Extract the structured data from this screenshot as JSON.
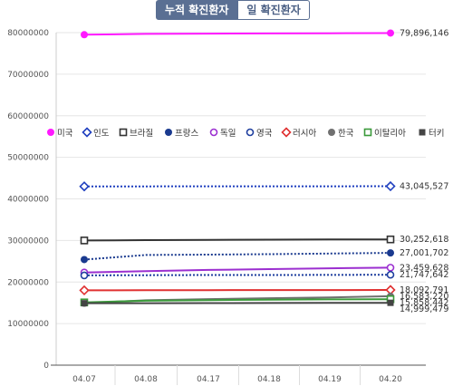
{
  "tabs": {
    "cumulative": "누적 확진환자",
    "daily": "일 확진환자"
  },
  "chart_data": {
    "type": "line",
    "x": [
      "04.07",
      "04.08",
      "04.17",
      "04.18",
      "04.19",
      "04.20"
    ],
    "ylim": [
      0,
      80000000
    ],
    "yticks": [
      "0",
      "10000000",
      "20000000",
      "30000000",
      "40000000",
      "50000000",
      "60000000",
      "70000000",
      "80000000"
    ],
    "grid": true,
    "legend_position": "middle-left",
    "series": [
      {
        "name": "미국",
        "color": "#ff19ff",
        "marker": "circle-filled",
        "values": [
          79500000,
          79700000,
          79750000,
          79800000,
          79850000,
          79896146
        ],
        "end_label": "79,896,146"
      },
      {
        "name": "인도",
        "color": "#1f3fbf",
        "marker": "diamond-open",
        "values": [
          43000000,
          43010000,
          43020000,
          43030000,
          43038000,
          43045527
        ],
        "end_label": "43,045,527"
      },
      {
        "name": "브라질",
        "color": "#333333",
        "marker": "square-open",
        "values": [
          30000000,
          30080000,
          30150000,
          30200000,
          30230000,
          30252618
        ],
        "end_label": "30,252,618"
      },
      {
        "name": "프랑스",
        "color": "#1a3a8f",
        "marker": "circle-filled",
        "values": [
          25400000,
          26500000,
          26600000,
          26700000,
          26850000,
          27001702
        ],
        "end_label": "27,001,702"
      },
      {
        "name": "독일",
        "color": "#9b2fd0",
        "marker": "circle-open",
        "values": [
          22300000,
          22600000,
          22900000,
          23100000,
          23300000,
          23459628
        ],
        "end_label": "23,459,628"
      },
      {
        "name": "영국",
        "color": "#1f3f9f",
        "marker": "circle-open",
        "values": [
          21600000,
          21650000,
          21680000,
          21700000,
          21720000,
          21747642
        ],
        "end_label": "21,747,642"
      },
      {
        "name": "러시아",
        "color": "#e03030",
        "marker": "diamond-open",
        "values": [
          18000000,
          18030000,
          18050000,
          18070000,
          18080000,
          18092791
        ],
        "end_label": "18,092,791"
      },
      {
        "name": "한국",
        "color": "#707070",
        "marker": "circle-filled",
        "values": [
          14900000,
          15600000,
          15900000,
          16100000,
          16300000,
          16583220
        ],
        "end_label": "16,583,220"
      },
      {
        "name": "이탈리아",
        "color": "#3a9a3a",
        "marker": "square-open",
        "values": [
          15100000,
          15500000,
          15650000,
          15750000,
          15820000,
          15858442
        ],
        "end_label": "15,858,442"
      },
      {
        "name": "터키",
        "color": "#444444",
        "marker": "square-filled",
        "values": [
          14900000,
          14920000,
          14940000,
          14960000,
          14980000,
          14999479
        ],
        "end_label": "14,999,479"
      }
    ]
  }
}
